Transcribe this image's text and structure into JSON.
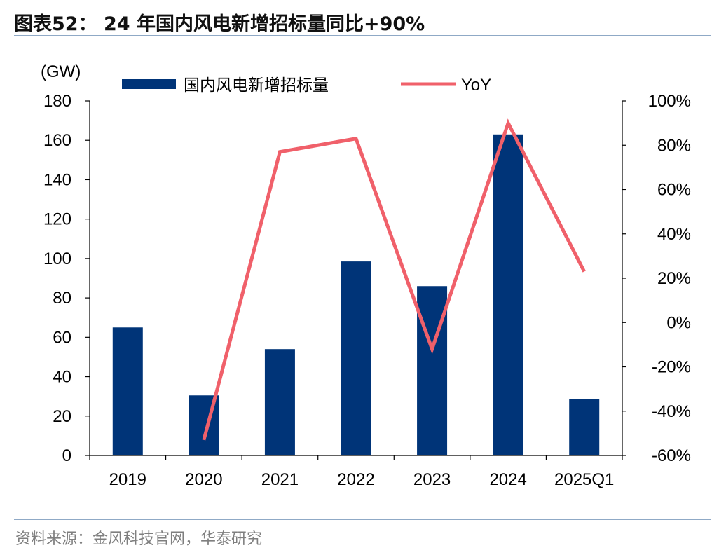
{
  "title": "图表52： 24 年国内风电新增招标量同比+90%",
  "source": "资料来源：金风科技官网，华泰研究",
  "chart_data": {
    "type": "bar",
    "categories": [
      "2019",
      "2020",
      "2021",
      "2022",
      "2023",
      "2024",
      "2025Q1"
    ],
    "series": [
      {
        "name": "国内风电新增招标量",
        "type": "bar",
        "axis": "left",
        "color": "#003478",
        "values": [
          65,
          30.5,
          54,
          98.5,
          86,
          163,
          28.5
        ]
      },
      {
        "name": "YoY",
        "type": "line",
        "axis": "right",
        "color": "#f0606a",
        "values": [
          null,
          -0.53,
          0.77,
          0.83,
          -0.12,
          0.9,
          0.23
        ]
      }
    ],
    "left_axis": {
      "unit_label": "(GW)",
      "min": 0,
      "max": 180,
      "step": 20,
      "ticks": [
        "0",
        "20",
        "40",
        "60",
        "80",
        "100",
        "120",
        "140",
        "160",
        "180"
      ]
    },
    "right_axis": {
      "min": -0.6,
      "max": 1.0,
      "step": 0.2,
      "ticks": [
        "-60%",
        "-40%",
        "-20%",
        "0%",
        "20%",
        "40%",
        "60%",
        "80%",
        "100%"
      ]
    },
    "legend_position": "top",
    "grid": false
  }
}
